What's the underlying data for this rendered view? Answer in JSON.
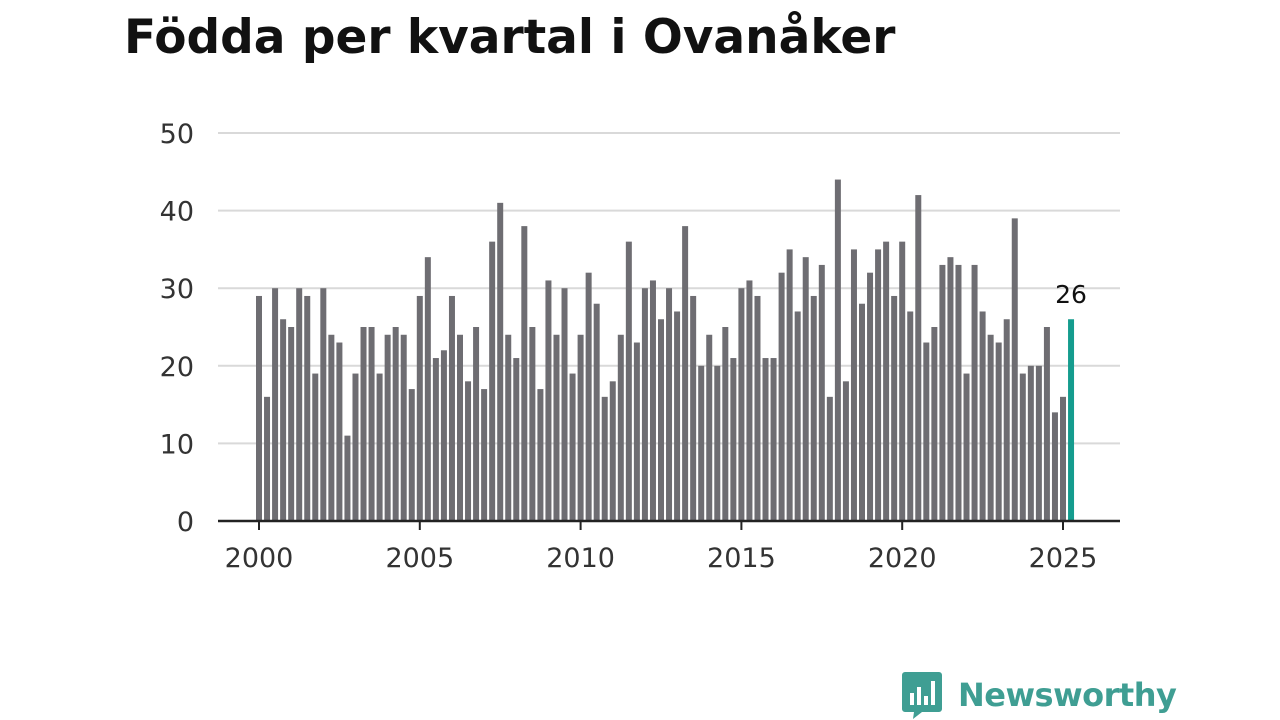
{
  "chart_data": {
    "type": "bar",
    "title": "Födda per kvartal i Ovanåker",
    "xlabel": "",
    "ylabel": "",
    "ylim": [
      0,
      50
    ],
    "yticks": [
      0,
      10,
      20,
      30,
      40,
      50
    ],
    "xticks": [
      2000,
      2005,
      2010,
      2015,
      2020,
      2025
    ],
    "grid": true,
    "x_start": 2000,
    "periods_per_year": 4,
    "values": [
      29,
      16,
      30,
      26,
      25,
      30,
      29,
      19,
      30,
      24,
      23,
      11,
      19,
      25,
      25,
      19,
      24,
      25,
      24,
      17,
      29,
      34,
      21,
      22,
      29,
      24,
      18,
      25,
      17,
      36,
      41,
      24,
      21,
      38,
      25,
      17,
      31,
      24,
      30,
      19,
      24,
      32,
      28,
      16,
      18,
      24,
      36,
      23,
      30,
      31,
      26,
      30,
      27,
      38,
      29,
      20,
      24,
      20,
      25,
      21,
      30,
      31,
      29,
      21,
      21,
      32,
      35,
      27,
      34,
      29,
      33,
      16,
      44,
      18,
      35,
      28,
      32,
      35,
      36,
      29,
      36,
      27,
      42,
      23,
      25,
      33,
      34,
      33,
      19,
      33,
      27,
      24,
      23,
      26,
      39,
      19,
      20,
      20,
      25,
      14,
      16,
      26
    ],
    "highlight_last": true,
    "highlight_label": "26",
    "bar_color": "#6e6d72",
    "highlight_color": "#159c8e",
    "grid_color": "#d9d9d9",
    "axis_color": "#222222"
  },
  "brand": {
    "name": "Newsworthy",
    "logo_icon": "newsworthy-logo-icon",
    "color": "#3f9e93"
  }
}
